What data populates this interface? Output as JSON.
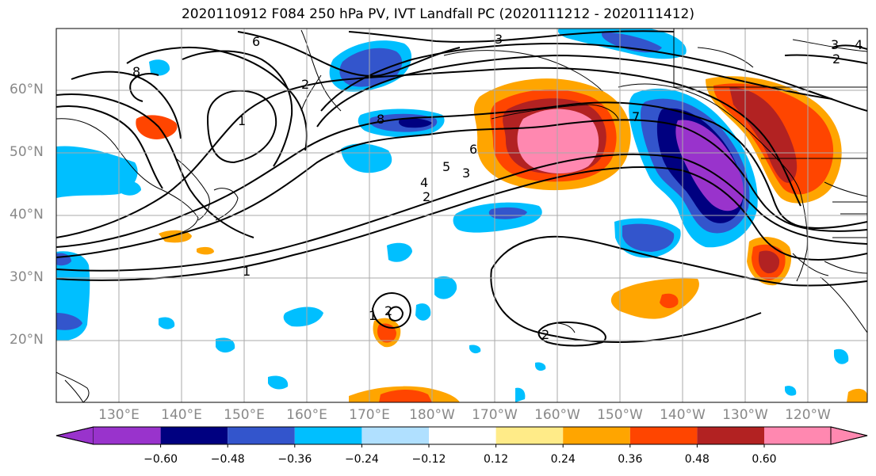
{
  "title": "2020110912 F084 250 hPa PV, IVT Landfall PC (2020111212 - 2020111412)",
  "lat_labels": [
    "60°N",
    "50°N",
    "40°N",
    "30°N",
    "20°N"
  ],
  "lon_labels": [
    "130°E",
    "140°E",
    "150°E",
    "160°E",
    "170°E",
    "180°W",
    "170°W",
    "160°W",
    "150°W",
    "140°W",
    "130°W",
    "120°W"
  ],
  "colorbar": {
    "colors": [
      "#9933cc",
      "#000080",
      "#3355cc",
      "#00bfff",
      "#b0e0ff",
      "#ffffff",
      "#ffeb88",
      "#ffa500",
      "#ff4500",
      "#b22222",
      "#ff88b0"
    ],
    "tick_labels": [
      "−0.60",
      "−0.48",
      "−0.36",
      "−0.24",
      "−0.12",
      "0.12",
      "0.24",
      "0.36",
      "0.48",
      "0.60"
    ]
  },
  "contour_labels": [
    "6",
    "3",
    "8",
    "1",
    "2",
    "8",
    "7",
    "6",
    "5",
    "4",
    "3",
    "2",
    "1",
    "1",
    "2",
    "2",
    "2",
    "3",
    "4"
  ]
}
